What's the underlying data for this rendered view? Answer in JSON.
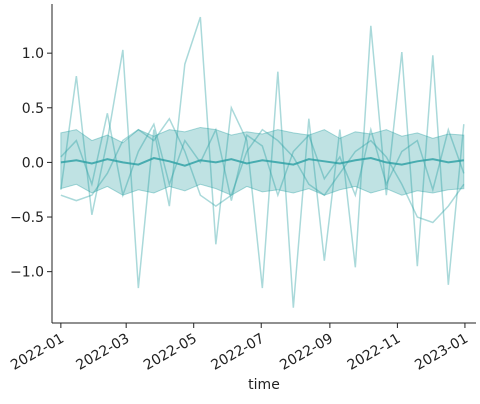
{
  "chart_data": {
    "type": "line",
    "x_label": "time",
    "x": [
      0,
      14,
      28,
      42,
      56,
      70,
      84,
      98,
      112,
      126,
      140,
      154,
      168,
      182,
      196,
      210,
      224,
      238,
      252,
      266,
      280,
      294,
      308,
      322,
      336,
      350,
      364
    ],
    "xlim": [
      -8,
      375
    ],
    "xticks": [
      {
        "value": 0,
        "label": "2022-01"
      },
      {
        "value": 59,
        "label": "2022-03"
      },
      {
        "value": 120,
        "label": "2022-05"
      },
      {
        "value": 181,
        "label": "2022-07"
      },
      {
        "value": 243,
        "label": "2022-09"
      },
      {
        "value": 304,
        "label": "2022-11"
      },
      {
        "value": 365,
        "label": "2023-01"
      }
    ],
    "ylim": [
      -1.47,
      1.45
    ],
    "yticks": [
      {
        "value": -1,
        "label": "−1.0"
      },
      {
        "value": -0.5,
        "label": "−0.5"
      },
      {
        "value": 0,
        "label": "0.0"
      },
      {
        "value": 0.5,
        "label": "0.5"
      },
      {
        "value": 1,
        "label": "1.0"
      }
    ],
    "color": "#2a9fa3",
    "band": {
      "upper": [
        0.27,
        0.3,
        0.2,
        0.25,
        0.18,
        0.3,
        0.24,
        0.3,
        0.28,
        0.32,
        0.3,
        0.25,
        0.28,
        0.26,
        0.3,
        0.27,
        0.25,
        0.3,
        0.22,
        0.28,
        0.26,
        0.3,
        0.24,
        0.27,
        0.22,
        0.26,
        0.25
      ],
      "lower": [
        -0.24,
        -0.2,
        -0.28,
        -0.22,
        -0.3,
        -0.25,
        -0.28,
        -0.22,
        -0.26,
        -0.2,
        -0.24,
        -0.3,
        -0.22,
        -0.27,
        -0.25,
        -0.28,
        -0.24,
        -0.3,
        -0.25,
        -0.22,
        -0.28,
        -0.24,
        -0.3,
        -0.26,
        -0.28,
        -0.25,
        -0.24
      ]
    },
    "series": [
      {
        "values": [
          -0.25,
          0.79,
          -0.48,
          0.2,
          1.03,
          -1.15,
          0.3,
          -0.4,
          0.9,
          1.33,
          -0.75,
          0.5,
          0.2,
          -1.15,
          0.83,
          -1.33,
          0.4,
          -0.9,
          0.3,
          -0.96,
          1.25,
          -0.3,
          1.01,
          -0.95,
          0.98,
          -1.12,
          0.35
        ]
      },
      {
        "values": [
          -0.3,
          -0.35,
          -0.3,
          -0.1,
          0.2,
          0.3,
          0.2,
          0.4,
          0.1,
          -0.3,
          -0.4,
          -0.3,
          0.1,
          0.3,
          0.2,
          0.05,
          -0.2,
          -0.3,
          -0.1,
          0.1,
          0.2,
          0.05,
          -0.2,
          -0.5,
          -0.55,
          -0.4,
          -0.2
        ]
      },
      {
        "values": [
          0.05,
          0.2,
          -0.2,
          0.45,
          -0.3,
          0.1,
          0.35,
          -0.2,
          0.2,
          0.0,
          0.3,
          -0.35,
          0.25,
          0.15,
          -0.3,
          0.1,
          0.25,
          -0.15,
          0.05,
          -0.3,
          0.3,
          -0.2,
          0.1,
          0.2,
          -0.25,
          0.3,
          -0.1
        ]
      },
      {
        "values": [
          0.0,
          0.02,
          -0.01,
          0.03,
          0.0,
          -0.02,
          0.04,
          0.01,
          -0.03,
          0.02,
          0.0,
          0.03,
          -0.01,
          0.02,
          0.0,
          -0.02,
          0.03,
          0.01,
          -0.01,
          0.02,
          0.04,
          0.0,
          -0.02,
          0.01,
          0.03,
          0.0,
          0.02
        ]
      }
    ]
  }
}
